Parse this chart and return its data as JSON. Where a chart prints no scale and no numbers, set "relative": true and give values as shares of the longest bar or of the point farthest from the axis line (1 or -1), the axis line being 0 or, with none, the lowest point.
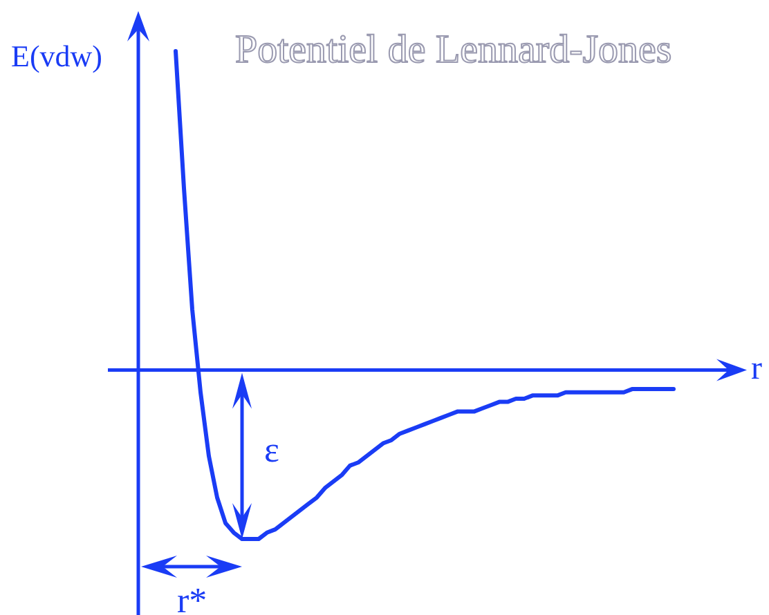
{
  "chart_data": {
    "type": "line",
    "title": "Potentiel de Lennard-Jones",
    "ylabel": "E(vdw)",
    "xlabel": "r",
    "relative": true,
    "marker": "none",
    "legend": false,
    "ref_lines": [
      {
        "axis": "y",
        "value": 0
      }
    ],
    "categories": [
      null,
      null,
      null,
      null,
      null,
      null,
      null,
      null,
      null,
      null,
      null,
      null,
      null,
      null,
      null,
      null,
      null,
      null,
      null,
      null,
      null,
      null,
      null,
      null,
      null,
      null,
      null,
      null,
      null,
      null,
      null,
      null,
      null,
      null,
      null,
      null,
      null,
      null,
      null,
      null,
      null,
      null,
      null,
      null,
      null,
      null,
      null,
      null,
      null,
      null,
      null,
      null,
      null,
      null,
      null,
      null,
      null,
      null,
      null,
      null,
      null
    ],
    "series": [
      {
        "color": "#1a3cf5",
        "values": [
          1.0,
          0.57,
          0.19,
          -0.07,
          -0.27,
          -0.4,
          -0.48,
          -0.51,
          -0.53,
          -0.53,
          -0.53,
          -0.51,
          -0.5,
          -0.48,
          -0.46,
          -0.44,
          -0.42,
          -0.4,
          -0.37,
          -0.35,
          -0.33,
          -0.3,
          -0.29,
          -0.27,
          -0.25,
          -0.23,
          -0.22,
          -0.2,
          -0.19,
          -0.18,
          -0.17,
          -0.16,
          -0.15,
          -0.14,
          -0.13,
          -0.13,
          -0.13,
          -0.12,
          -0.11,
          -0.1,
          -0.1,
          -0.09,
          -0.09,
          -0.08,
          -0.08,
          -0.08,
          -0.08,
          -0.07,
          -0.07,
          -0.07,
          -0.07,
          -0.07,
          -0.07,
          -0.07,
          -0.07,
          -0.06,
          -0.06,
          -0.06,
          -0.06,
          -0.06,
          -0.06
        ]
      }
    ],
    "annotations": [
      "ε",
      "r*"
    ]
  }
}
